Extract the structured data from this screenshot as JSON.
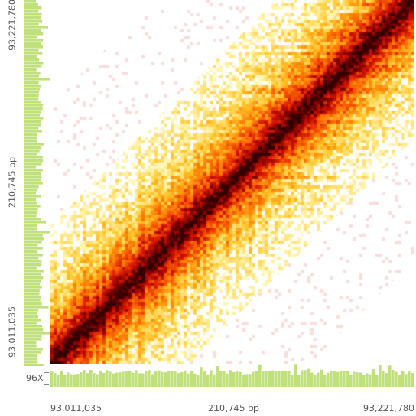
{
  "view": {
    "region_start": "93,011,035",
    "region_end": "93,221,780",
    "region_span": "210,745 bp",
    "coverage_scale_label": "96X"
  },
  "colors": {
    "coverage": "#bfe07b",
    "heat_low": "#fff2a8",
    "heat_mid": "#ff7a00",
    "heat_high": "#d40000",
    "heat_max": "#3a0000",
    "background": "#ffffff",
    "sparse_pink": "#f4a9a9"
  },
  "icons": {
    "crosshair": "crosshair-cursor"
  }
}
